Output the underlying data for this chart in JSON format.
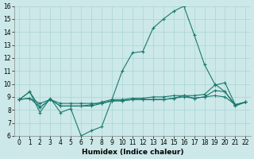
{
  "xlabel": "Humidex (Indice chaleur)",
  "bg_color": "#cce8e8",
  "grid_color": "#aad4d4",
  "line_color": "#1a7a6e",
  "xlim": [
    -0.5,
    22.5
  ],
  "ylim": [
    6,
    16
  ],
  "xticks": [
    0,
    1,
    2,
    3,
    4,
    5,
    6,
    7,
    8,
    9,
    10,
    11,
    12,
    13,
    14,
    15,
    16,
    17,
    18,
    19,
    20,
    21,
    22
  ],
  "yticks": [
    6,
    7,
    8,
    9,
    10,
    11,
    12,
    13,
    14,
    15,
    16
  ],
  "lines": [
    [
      8.8,
      9.4,
      7.8,
      8.9,
      7.8,
      8.1,
      6.0,
      6.4,
      6.7,
      8.8,
      11.0,
      12.4,
      12.5,
      14.3,
      15.0,
      15.6,
      16.0,
      13.8,
      11.5,
      10.0,
      9.4,
      8.3,
      8.6
    ],
    [
      8.8,
      8.9,
      8.2,
      8.8,
      8.3,
      8.3,
      8.3,
      8.3,
      8.5,
      8.7,
      8.7,
      8.8,
      8.8,
      8.8,
      8.8,
      8.9,
      9.1,
      8.9,
      9.0,
      9.5,
      9.4,
      8.4,
      8.6
    ],
    [
      8.8,
      8.9,
      8.5,
      8.8,
      8.5,
      8.5,
      8.5,
      8.5,
      8.5,
      8.7,
      8.7,
      8.8,
      8.8,
      8.8,
      8.8,
      8.9,
      9.0,
      8.9,
      9.0,
      9.1,
      9.0,
      8.4,
      8.6
    ],
    [
      8.8,
      9.4,
      8.2,
      8.8,
      8.3,
      8.3,
      8.3,
      8.4,
      8.6,
      8.8,
      8.8,
      8.9,
      8.9,
      9.0,
      9.0,
      9.1,
      9.1,
      9.1,
      9.2,
      9.9,
      10.1,
      8.4,
      8.6
    ]
  ]
}
